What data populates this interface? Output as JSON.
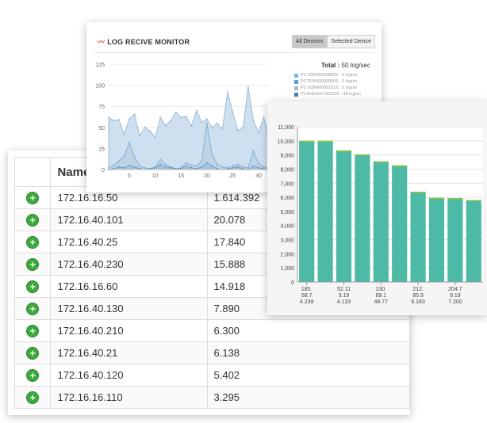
{
  "monitor": {
    "title": "LOG RECIVE MONITOR",
    "buttons": [
      "All Devices",
      "Selected Device"
    ],
    "total_label": "Total :",
    "total_value": "50 log/sec",
    "legend": [
      {
        "text": "PC7606400038830 : 0 log/sn",
        "color": "#7ab8e6"
      },
      {
        "text": "PC7606400038956 : 0 log/sn",
        "color": "#5d9fd6"
      },
      {
        "text": "PC7606400061816 : 2 log/sn",
        "color": "#a7b9c6"
      },
      {
        "text": "PC4HE0017062315 : 48 log/sn",
        "color": "#4a7fa8"
      }
    ]
  },
  "area_chart": {
    "type": "area",
    "ylim": [
      0,
      125
    ],
    "yticks": [
      "0",
      "25",
      "50",
      "75",
      "100",
      "125"
    ],
    "xticks": [
      "5",
      "10",
      "15",
      "20",
      "25",
      "30"
    ],
    "x": [
      1,
      2,
      3,
      4,
      5,
      6,
      7,
      8,
      9,
      10,
      11,
      12,
      13,
      14,
      15,
      16,
      17,
      18,
      19,
      20,
      21,
      22,
      23,
      24,
      25,
      26,
      27,
      28,
      29,
      30,
      31,
      32
    ],
    "series": [
      {
        "values": [
          62,
          58,
          59,
          42,
          60,
          66,
          40,
          50,
          46,
          38,
          62,
          52,
          58,
          68,
          62,
          63,
          52,
          70,
          56,
          60,
          50,
          55,
          48,
          92,
          68,
          46,
          50,
          98,
          58,
          44,
          62,
          40
        ]
      },
      {
        "values": [
          2,
          5,
          10,
          16,
          32,
          15,
          4,
          2,
          1,
          3,
          12,
          6,
          3,
          1,
          2,
          8,
          5,
          4,
          10,
          55,
          18,
          6,
          3,
          2,
          4,
          6,
          3,
          2,
          22,
          7,
          3,
          1
        ]
      },
      {
        "values": [
          0,
          1,
          3,
          2,
          5,
          3,
          1,
          0,
          1,
          2,
          6,
          3,
          2,
          1,
          1,
          4,
          2,
          1,
          3,
          8,
          4,
          1,
          0,
          1,
          2,
          3,
          1,
          0,
          4,
          2,
          1,
          0
        ]
      }
    ]
  },
  "bar_chart": {
    "type": "bar",
    "yticks": [
      "0",
      "1,000",
      "2,000",
      "3,000",
      "4,000",
      "5,000",
      "6,000",
      "7,000",
      "8,000",
      "9,000",
      "10,000",
      "11,000"
    ],
    "ylim": [
      0,
      11000
    ],
    "values": [
      10000,
      10000,
      9320,
      9040,
      8550,
      8260,
      6400,
      5960,
      5950,
      5810
    ],
    "x_labels": [
      [
        "185.",
        "58.7",
        "4.239"
      ],
      [
        "52.11",
        "3.19",
        "4.133"
      ],
      [
        "130.",
        "89.1",
        "48.77"
      ],
      [
        "212.",
        "85.9",
        "6.183"
      ],
      [
        "204.7",
        "9.19",
        "7.200"
      ]
    ],
    "bar_color": "#4dbaa5",
    "cap_color": "#8cc63f"
  },
  "table": {
    "header": {
      "action": "",
      "name": "Name",
      "value": ""
    },
    "rows": [
      {
        "name": "172.16.16.50",
        "value": "1.614.392"
      },
      {
        "name": "172.16.40.101",
        "value": "20.078"
      },
      {
        "name": "172.16.40.25",
        "value": "17.840"
      },
      {
        "name": "172.16.40.230",
        "value": "15.888"
      },
      {
        "name": "172.16.16.60",
        "value": "14.918"
      },
      {
        "name": "172.16.40.130",
        "value": "7.890"
      },
      {
        "name": "172.16.40.210",
        "value": "6.300"
      },
      {
        "name": "172.16.40.21",
        "value": "6.138"
      },
      {
        "name": "172.16.40.120",
        "value": "5.402"
      },
      {
        "name": "172.16.16.110",
        "value": "3.295"
      }
    ]
  }
}
